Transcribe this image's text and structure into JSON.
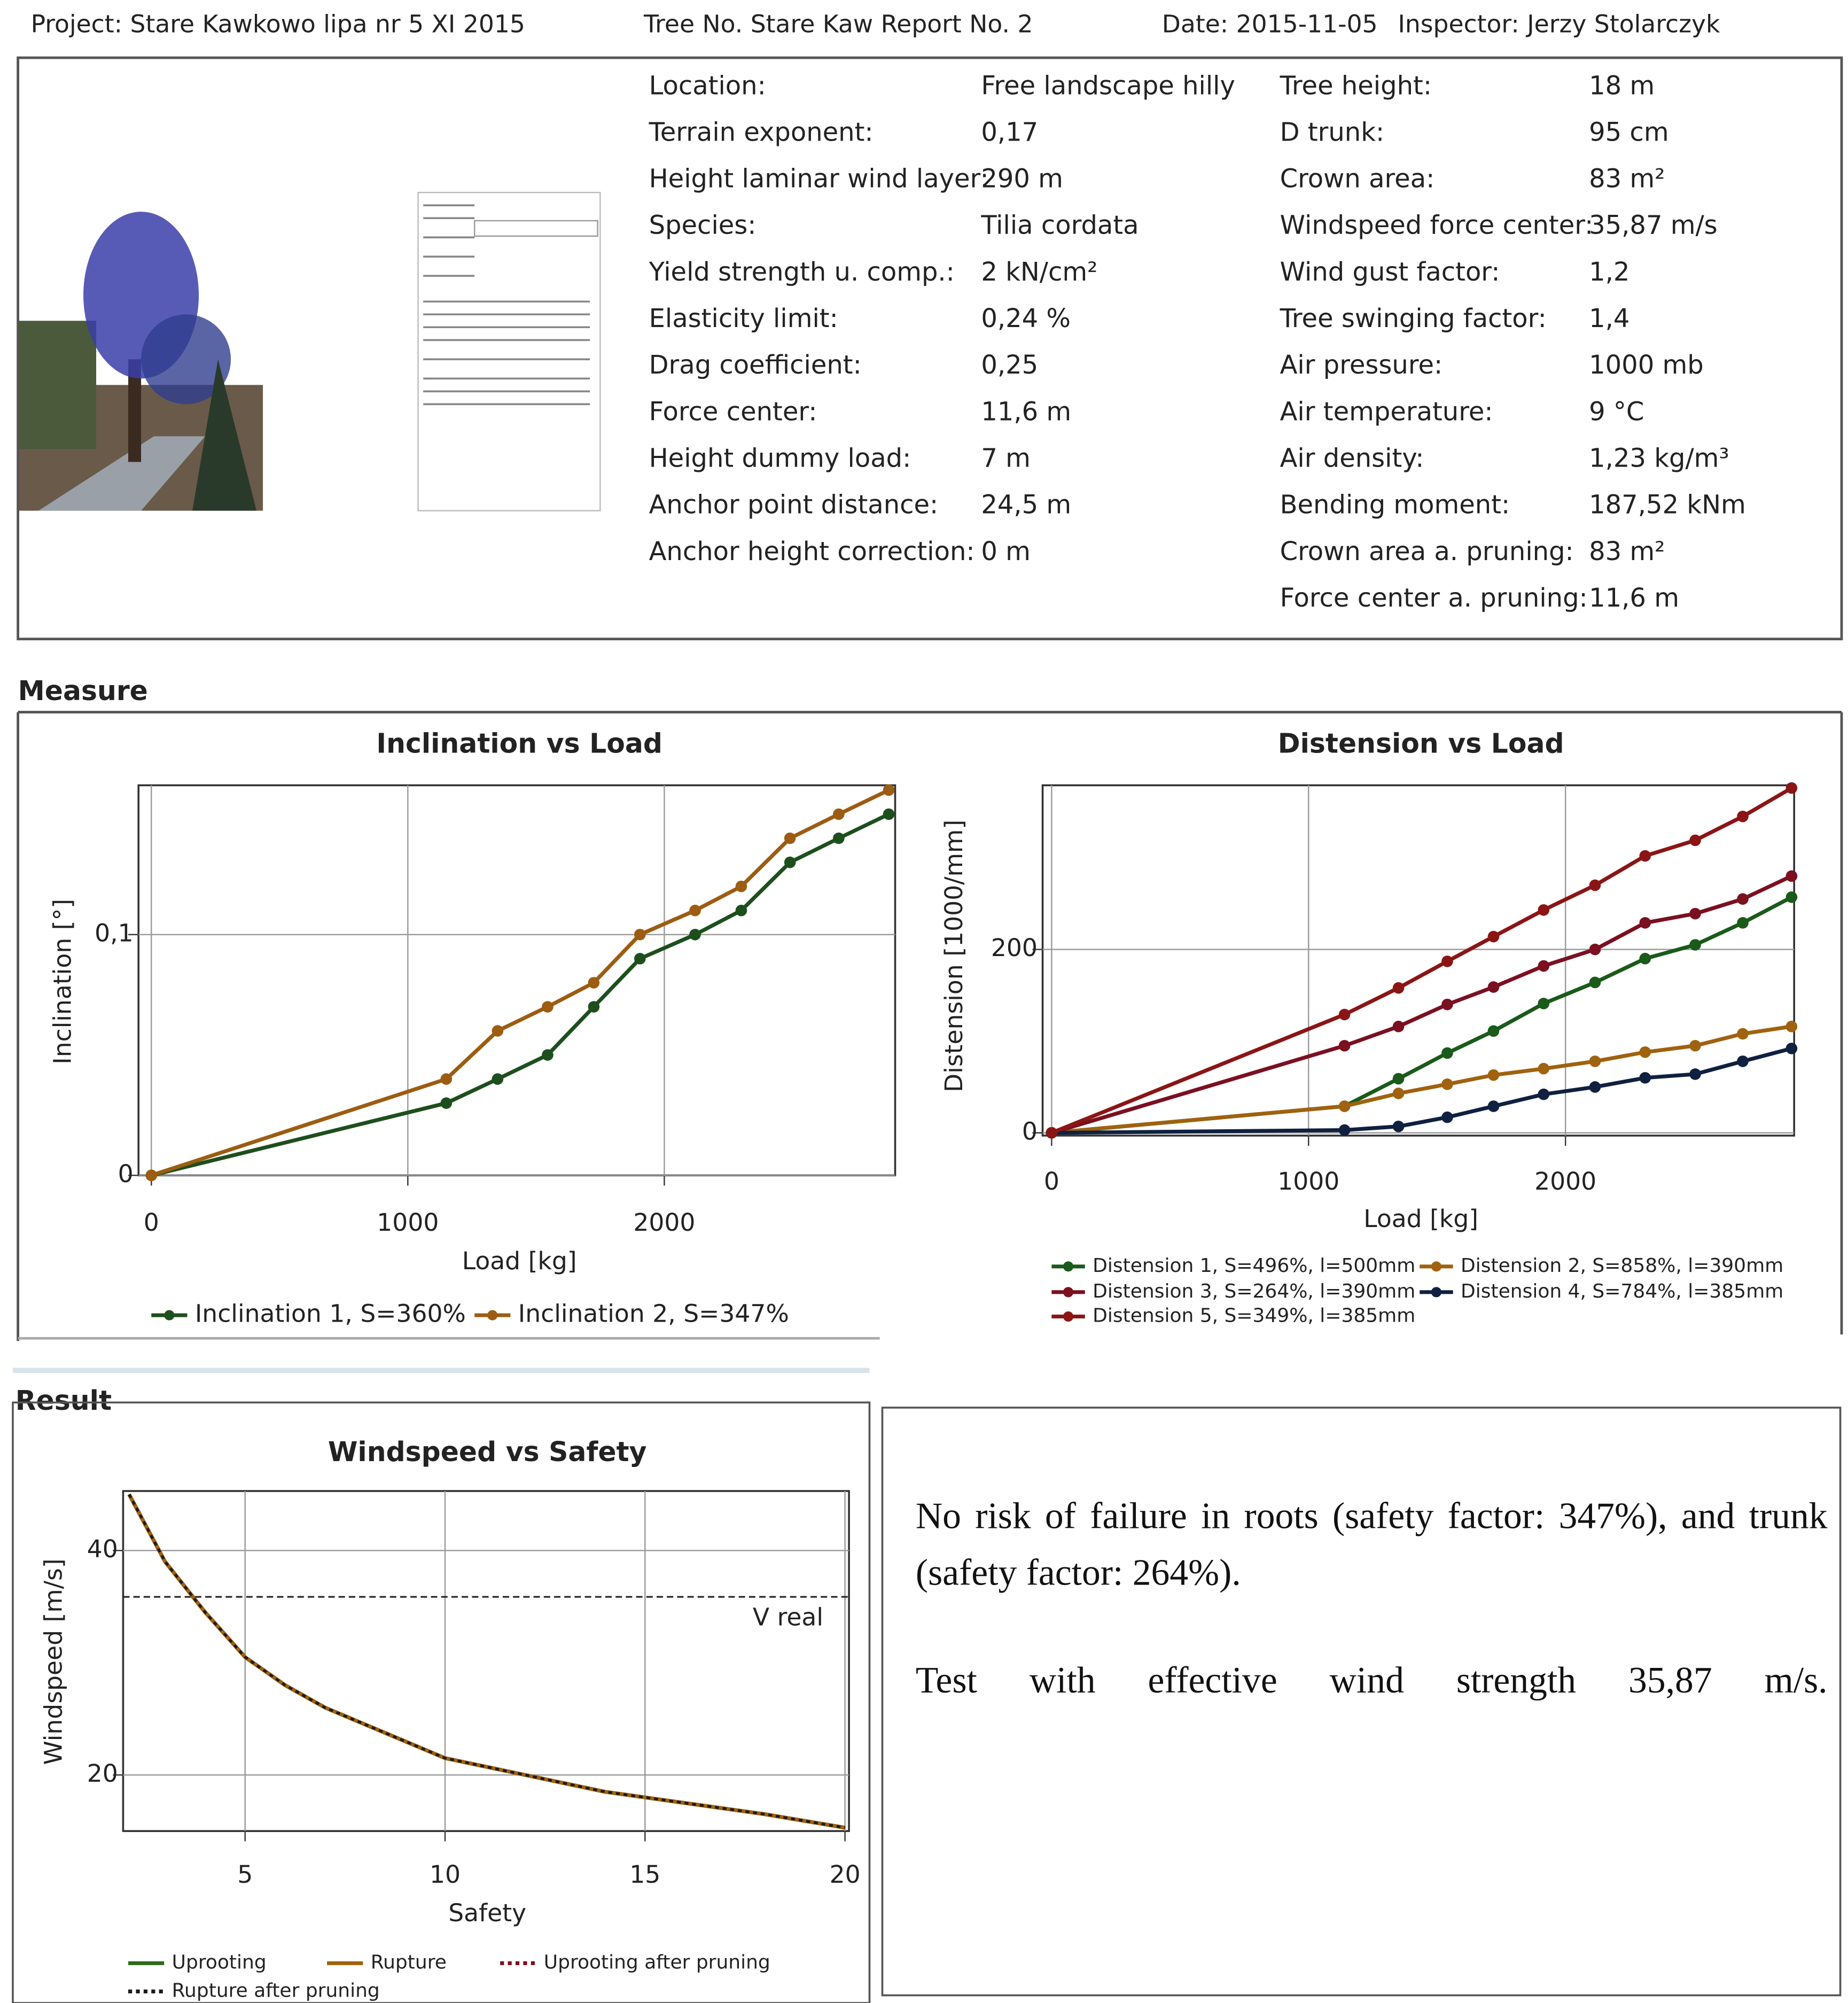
{
  "header": {
    "project": "Project: Stare Kawkowo lipa nr 5 XI 2015",
    "tree": "Tree No. Stare Kaw Report No. 2",
    "date": "Date: 2015-11-05",
    "inspector": "Inspector: Jerzy Stolarczyk"
  },
  "params_left": [
    {
      "label": "Location:",
      "value": "Free landscape hilly"
    },
    {
      "label": "Terrain exponent:",
      "value": "0,17"
    },
    {
      "label": "Height laminar wind layer:",
      "value": "290 m"
    },
    {
      "label": "Species:",
      "value": "Tilia cordata"
    },
    {
      "label": "Yield strength u. comp.:",
      "value": "2 kN/cm²"
    },
    {
      "label": "Elasticity limit:",
      "value": "0,24 %"
    },
    {
      "label": "Drag coefficient:",
      "value": "0,25"
    },
    {
      "label": "Force center:",
      "value": "11,6 m"
    },
    {
      "label": "Height dummy load:",
      "value": "7 m"
    },
    {
      "label": "Anchor point distance:",
      "value": "24,5 m"
    },
    {
      "label": "Anchor height correction:",
      "value": "0 m"
    }
  ],
  "params_right": [
    {
      "label": "Tree height:",
      "value": "18 m"
    },
    {
      "label": "D trunk:",
      "value": "95 cm"
    },
    {
      "label": "Crown area:",
      "value": "83 m²"
    },
    {
      "label": "Windspeed force center:",
      "value": "35,87 m/s"
    },
    {
      "label": "Wind gust factor:",
      "value": "1,2"
    },
    {
      "label": "Tree swinging factor:",
      "value": "1,4"
    },
    {
      "label": "Air pressure:",
      "value": "1000 mb"
    },
    {
      "label": "Air temperature:",
      "value": "9 °C"
    },
    {
      "label": "Air density:",
      "value": "1,23 kg/m³"
    },
    {
      "label": "Bending moment:",
      "value": "187,52 kNm"
    },
    {
      "label": "Crown area a. pruning:",
      "value": "83 m²"
    },
    {
      "label": "Force center a. pruning:",
      "value": "11,6 m"
    }
  ],
  "sections": {
    "measure": "Measure",
    "result": "Result"
  },
  "chart_data": [
    {
      "type": "line",
      "title": "Inclination vs Load",
      "x_label": "Load [kg]",
      "y_label": "Inclination [°]",
      "x": [
        0,
        1150,
        1350,
        1545,
        1725,
        1905,
        2120,
        2300,
        2490,
        2680,
        2875
      ],
      "series": [
        {
          "name": "Inclination 1, S=360%",
          "color": "#1d4f1d",
          "values": [
            0,
            0.03,
            0.04,
            0.05,
            0.07,
            0.09,
            0.1,
            0.11,
            0.13,
            0.14,
            0.15
          ]
        },
        {
          "name": "Inclination 2, S=347%",
          "color": "#9c5d12",
          "values": [
            0,
            0.04,
            0.06,
            0.07,
            0.08,
            0.1,
            0.11,
            0.12,
            0.14,
            0.15,
            0.16
          ]
        }
      ],
      "xlim": [
        -50,
        2900
      ],
      "ylim": [
        0,
        0.162
      ],
      "xticks": [
        0,
        1000,
        2000
      ],
      "yticks": [
        0,
        {
          "value": 0.1,
          "label": "0,1"
        }
      ],
      "grid": true
    },
    {
      "type": "line",
      "title": "Distension vs Load",
      "x_label": "Load [kg]",
      "y_label": "Distension [1000/mm]",
      "x": [
        0,
        1140,
        1350,
        1540,
        1720,
        1915,
        2115,
        2310,
        2505,
        2690,
        2880
      ],
      "series": [
        {
          "name": "Distension 1, S=496%, l=500mm",
          "color": "#1a5a1a",
          "values": [
            0,
            29,
            59,
            87,
            111,
            141,
            164,
            190,
            205,
            229,
            257
          ]
        },
        {
          "name": "Distension 2, S=858%, l=390mm",
          "color": "#a0620f",
          "values": [
            0,
            29,
            43,
            53,
            63,
            70,
            78,
            88,
            95,
            108,
            116
          ]
        },
        {
          "name": "Distension 3, S=264%, l=390mm",
          "color": "#7a1020",
          "values": [
            0,
            95,
            116,
            140,
            159,
            182,
            200,
            229,
            239,
            255,
            280
          ]
        },
        {
          "name": "Distension 4, S=784%, l=385mm",
          "color": "#0f2040",
          "values": [
            0,
            3,
            7,
            17,
            29,
            42,
            50,
            60,
            64,
            78,
            92
          ]
        },
        {
          "name": "Distension 5, S=349%, l=385mm",
          "color": "#8b1515",
          "values": [
            0,
            129,
            158,
            187,
            214,
            243,
            270,
            302,
            319,
            345,
            376
          ]
        }
      ],
      "xlim": [
        -35,
        2890
      ],
      "ylim": [
        -3,
        379
      ],
      "xticks": [
        0,
        1000,
        2000
      ],
      "yticks": [
        0,
        200
      ],
      "grid": true
    },
    {
      "type": "line",
      "title": "Windspeed vs Safety",
      "x_label": "Safety",
      "y_label": "Windspeed [m/s]",
      "x": [
        2.1,
        3,
        4,
        5,
        6,
        7,
        8,
        10,
        12,
        14,
        16,
        18,
        20
      ],
      "series": [
        {
          "name": "Uprooting",
          "color": "#2e6a1c",
          "values": [
            45,
            39,
            34.5,
            30.5,
            28,
            26,
            24.5,
            21.5,
            20,
            18.5,
            17.5,
            16.5,
            15.3
          ]
        },
        {
          "name": "Rupture",
          "color": "#a0620f",
          "values": [
            45,
            39,
            34.5,
            30.5,
            28,
            26,
            24.5,
            21.5,
            20,
            18.5,
            17.5,
            16.5,
            15.3
          ]
        },
        {
          "name": "Uprooting after pruning",
          "color": "#7a1020",
          "style": "dotted",
          "values": [
            45,
            39,
            34.5,
            30.5,
            28,
            26,
            24.5,
            21.5,
            20,
            18.5,
            17.5,
            16.5,
            15.3
          ]
        },
        {
          "name": "Rupture after pruning",
          "color": "#1a1a1a",
          "style": "dotted",
          "values": [
            45,
            39,
            34.5,
            30.5,
            28,
            26,
            24.5,
            21.5,
            20,
            18.5,
            17.5,
            16.5,
            15.3
          ]
        }
      ],
      "reference_line": {
        "value": 35.87,
        "label": "V real"
      },
      "xlim": [
        1.95,
        20.1
      ],
      "ylim": [
        15,
        45.3
      ],
      "xticks": [
        5,
        10,
        15,
        20
      ],
      "yticks": [
        20,
        40
      ],
      "grid": true
    }
  ],
  "result_text": [
    "No risk of failure in roots (safety factor: 347%), and trunk (safety factor: 264%).",
    "Test with effective wind strength 35,87 m/s."
  ]
}
